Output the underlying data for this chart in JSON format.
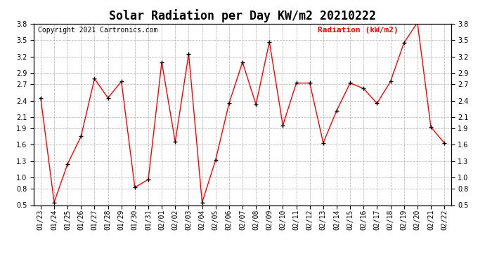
{
  "title": "Solar Radiation per Day KW/m2 20210222",
  "copyright_text": "Copyright 2021 Cartronics.com",
  "legend_label": "Radiation (kW/m2)",
  "dates": [
    "01/23",
    "01/24",
    "01/25",
    "01/26",
    "01/27",
    "01/28",
    "01/29",
    "01/30",
    "01/31",
    "02/01",
    "02/02",
    "02/03",
    "02/04",
    "02/05",
    "02/06",
    "02/07",
    "02/08",
    "02/09",
    "02/10",
    "02/11",
    "02/12",
    "02/13",
    "02/14",
    "02/15",
    "02/16",
    "02/17",
    "02/18",
    "02/19",
    "02/20",
    "02/21",
    "02/22"
  ],
  "values": [
    2.45,
    0.55,
    1.25,
    1.75,
    2.8,
    2.45,
    2.75,
    0.82,
    0.97,
    3.1,
    1.65,
    3.25,
    0.55,
    1.32,
    2.35,
    3.1,
    2.33,
    3.47,
    1.95,
    2.72,
    2.72,
    1.63,
    2.22,
    2.72,
    2.62,
    2.35,
    2.75,
    3.45,
    3.82,
    1.92,
    1.63
  ],
  "line_color": "#ff0000",
  "marker_color": "#000000",
  "grid_color": "#bbbbbb",
  "background_color": "#ffffff",
  "title_fontsize": 12,
  "tick_fontsize": 7,
  "copyright_fontsize": 7,
  "legend_fontsize": 8,
  "ylim": [
    0.5,
    3.8
  ],
  "yticks": [
    0.5,
    0.8,
    1.0,
    1.3,
    1.6,
    1.9,
    2.1,
    2.4,
    2.7,
    2.9,
    3.2,
    3.5,
    3.8
  ]
}
